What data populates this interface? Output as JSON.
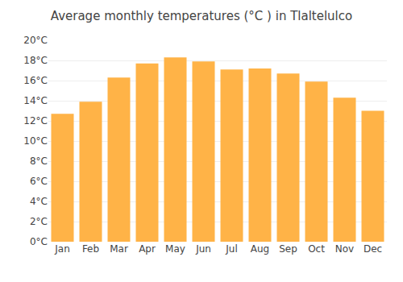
{
  "chart_data": {
    "type": "bar",
    "title": "Average monthly temperatures (°C ) in Tlaltelulco",
    "categories": [
      "Jan",
      "Feb",
      "Mar",
      "Apr",
      "May",
      "Jun",
      "Jul",
      "Aug",
      "Sep",
      "Oct",
      "Nov",
      "Dec"
    ],
    "values": [
      12.7,
      13.9,
      16.3,
      17.7,
      18.3,
      17.9,
      17.1,
      17.2,
      16.7,
      15.9,
      14.3,
      13.0
    ],
    "color": "#FFB347",
    "ylim": [
      0,
      20
    ],
    "yticks": [
      {
        "value": 0,
        "label": "0°C"
      },
      {
        "value": 2,
        "label": "2°C"
      },
      {
        "value": 4,
        "label": "4°C"
      },
      {
        "value": 6,
        "label": "6°C"
      },
      {
        "value": 8,
        "label": "8°C"
      },
      {
        "value": 10,
        "label": "10°C"
      },
      {
        "value": 12,
        "label": "12°C"
      },
      {
        "value": 14,
        "label": "14°C"
      },
      {
        "value": 16,
        "label": "16°C"
      },
      {
        "value": 18,
        "label": "18°C"
      },
      {
        "value": 20,
        "label": "20°C"
      }
    ],
    "grid": true
  }
}
